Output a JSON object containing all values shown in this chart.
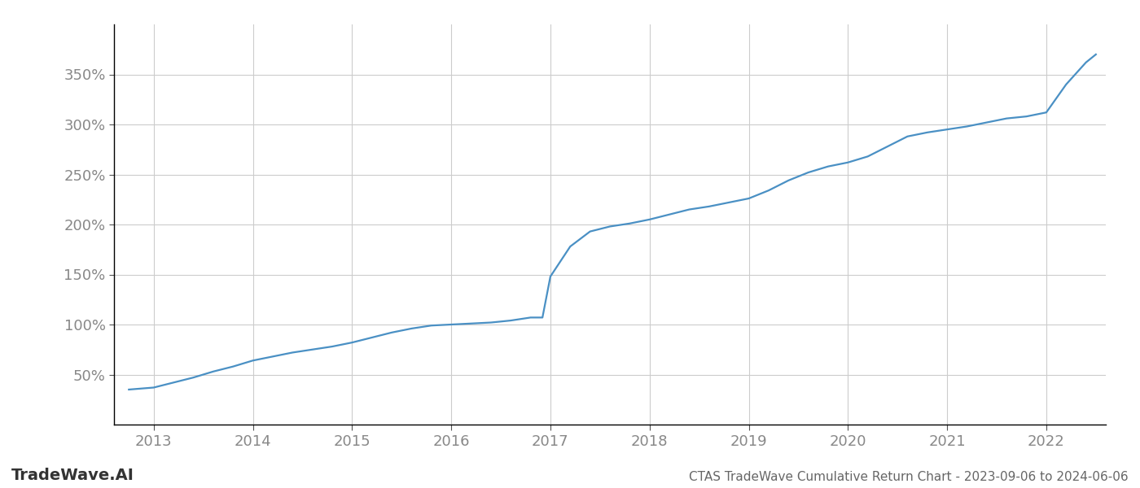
{
  "title": "CTAS TradeWave Cumulative Return Chart - 2023-09-06 to 2024-06-06",
  "watermark": "TradeWave.AI",
  "line_color": "#4a90c4",
  "background_color": "#ffffff",
  "grid_color": "#cccccc",
  "x_years": [
    2013,
    2014,
    2015,
    2016,
    2017,
    2018,
    2019,
    2020,
    2021,
    2022
  ],
  "data_x": [
    2012.75,
    2013.0,
    2013.2,
    2013.4,
    2013.6,
    2013.8,
    2014.0,
    2014.2,
    2014.4,
    2014.6,
    2014.8,
    2015.0,
    2015.2,
    2015.4,
    2015.6,
    2015.8,
    2016.0,
    2016.2,
    2016.4,
    2016.6,
    2016.8,
    2016.92,
    2017.0,
    2017.2,
    2017.4,
    2017.6,
    2017.8,
    2018.0,
    2018.2,
    2018.4,
    2018.6,
    2018.8,
    2019.0,
    2019.2,
    2019.4,
    2019.6,
    2019.8,
    2020.0,
    2020.2,
    2020.4,
    2020.6,
    2020.8,
    2021.0,
    2021.2,
    2021.4,
    2021.6,
    2021.8,
    2022.0,
    2022.2,
    2022.4,
    2022.5
  ],
  "data_y": [
    35,
    37,
    42,
    47,
    53,
    58,
    64,
    68,
    72,
    75,
    78,
    82,
    87,
    92,
    96,
    99,
    100,
    101,
    102,
    104,
    107,
    107,
    148,
    178,
    193,
    198,
    201,
    205,
    210,
    215,
    218,
    222,
    226,
    234,
    244,
    252,
    258,
    262,
    268,
    278,
    288,
    292,
    295,
    298,
    302,
    306,
    308,
    312,
    340,
    362,
    370
  ],
  "ylim": [
    0,
    400
  ],
  "yticks": [
    50,
    100,
    150,
    200,
    250,
    300,
    350
  ],
  "xlim": [
    2012.6,
    2022.6
  ],
  "line_width": 1.6,
  "tick_label_color": "#888888",
  "tick_label_fontsize": 13,
  "title_fontsize": 11,
  "watermark_fontsize": 14,
  "title_color": "#666666",
  "watermark_color": "#333333"
}
